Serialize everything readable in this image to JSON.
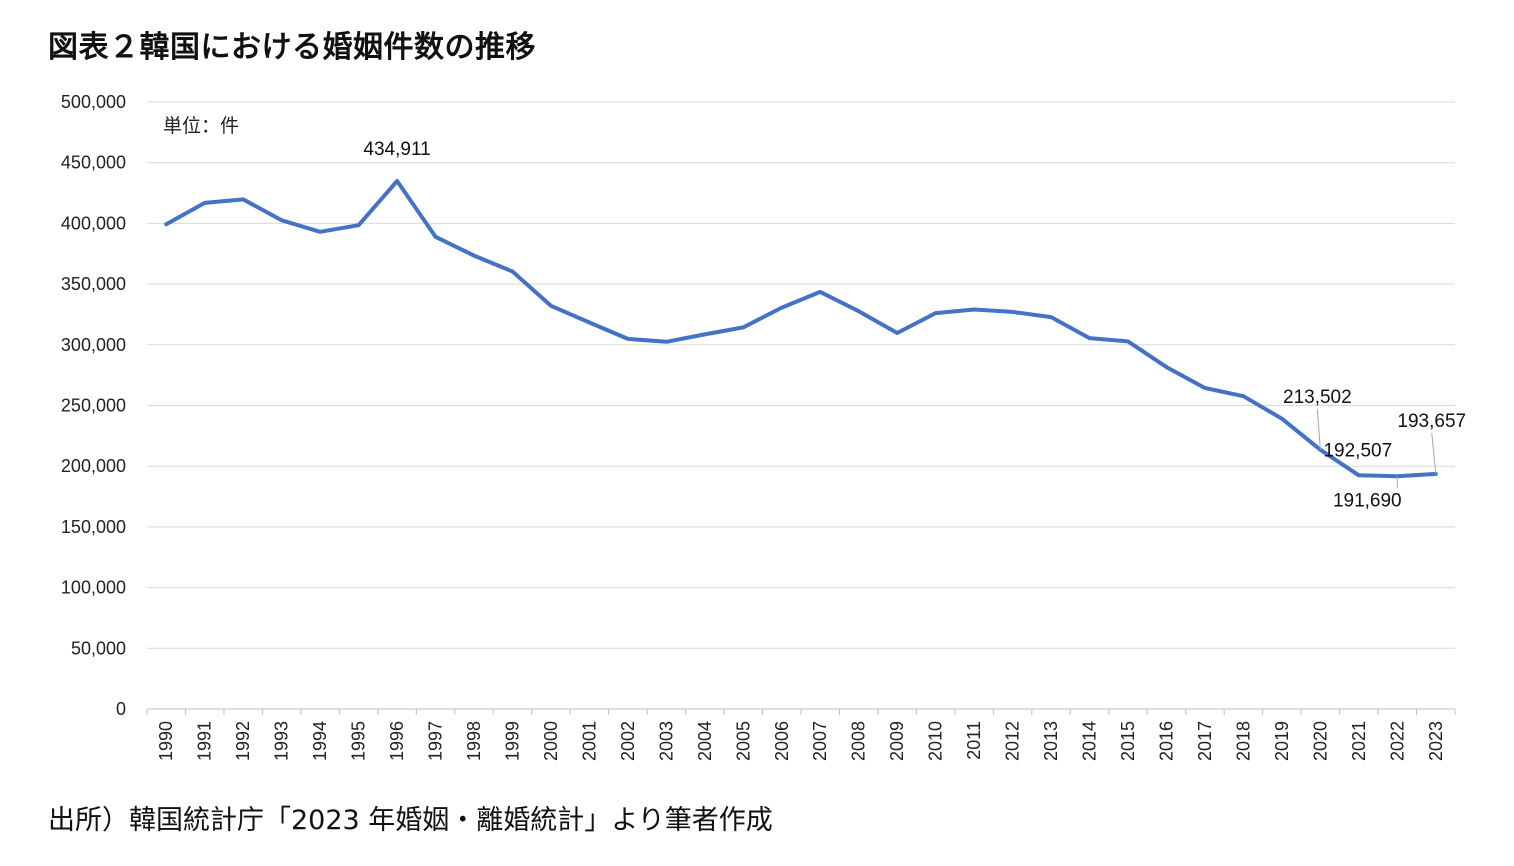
{
  "title": "図表２韓国における婚姻件数の推移",
  "source": "出所）韓国統計庁「2023 年婚姻・離婚統計」より筆者作成",
  "chart_data": {
    "type": "line",
    "unit_label": "単位：件",
    "x": [
      "1990",
      "1991",
      "1992",
      "1993",
      "1994",
      "1995",
      "1996",
      "1997",
      "1998",
      "1999",
      "2000",
      "2001",
      "2002",
      "2003",
      "2004",
      "2005",
      "2006",
      "2007",
      "2008",
      "2009",
      "2010",
      "2011",
      "2012",
      "2013",
      "2014",
      "2015",
      "2016",
      "2017",
      "2018",
      "2019",
      "2020",
      "2021",
      "2022",
      "2023"
    ],
    "series": [
      {
        "color": "#4472C4",
        "values": [
          399312,
          416872,
          419774,
          402593,
          393121,
          398484,
          434911,
          388960,
          373500,
          360407,
          332090,
          318407,
          304877,
          302503,
          308598,
          314304,
          330634,
          343559,
          327715,
          309759,
          326104,
          329087,
          327073,
          322807,
          305507,
          302828,
          281635,
          264455,
          257622,
          239159,
          213502,
          192507,
          191690,
          193657
        ]
      }
    ],
    "ylim": [
      0,
      500000
    ],
    "yticks": [
      "0",
      "50,000",
      "100,000",
      "150,000",
      "200,000",
      "250,000",
      "300,000",
      "350,000",
      "400,000",
      "450,000",
      "500,000"
    ],
    "grid": true,
    "annotations": [
      {
        "year": "1996",
        "text": "434,911"
      },
      {
        "year": "2020",
        "text": "213,502"
      },
      {
        "year": "2021",
        "text": "192,507"
      },
      {
        "year": "2022",
        "text": "191,690"
      },
      {
        "year": "2023",
        "text": "193,657"
      }
    ]
  }
}
